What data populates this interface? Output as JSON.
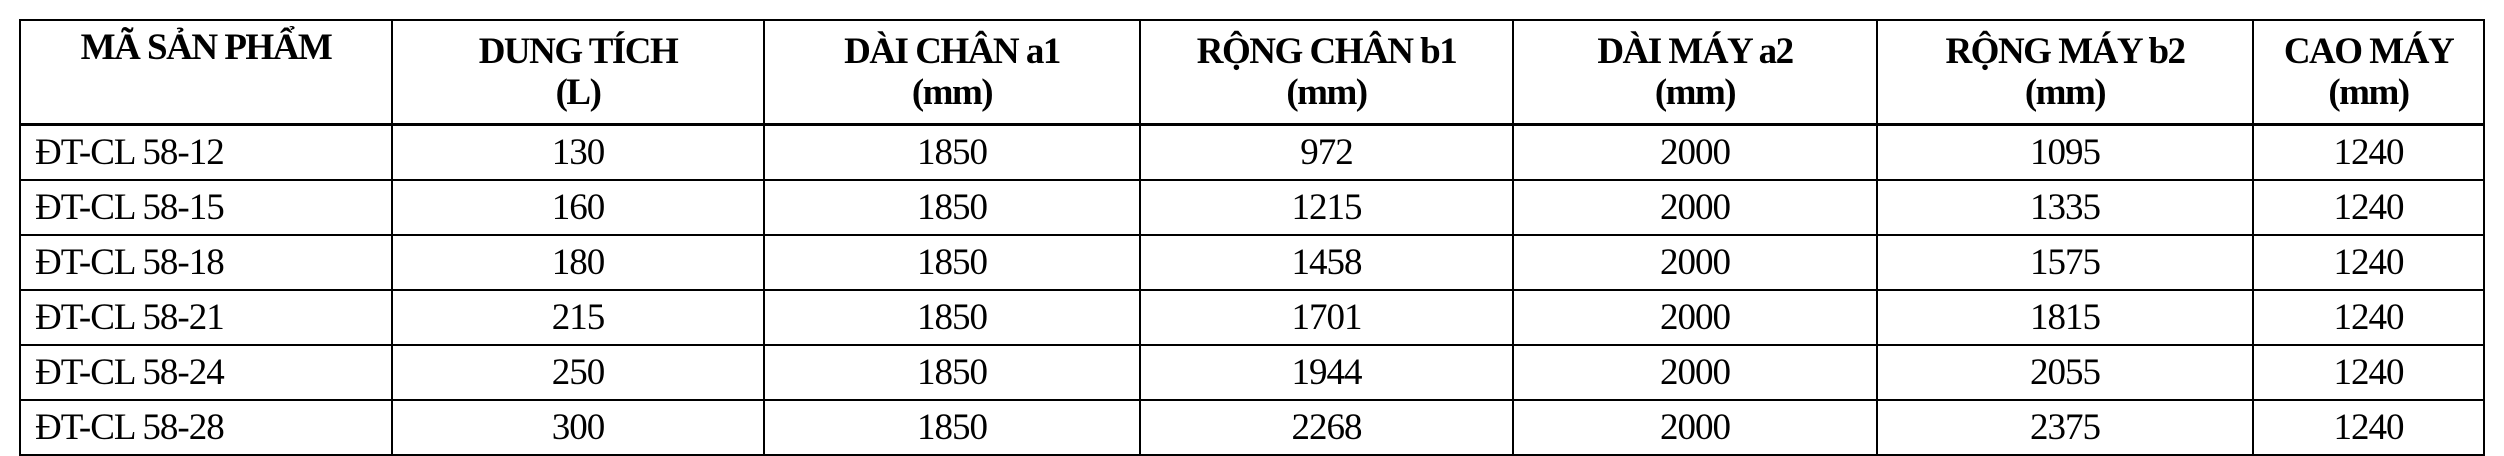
{
  "table": {
    "headers": [
      {
        "line1": "MÃ SẢN PHẨM",
        "line2": ""
      },
      {
        "line1": "DUNG TÍCH",
        "line2": "(L)"
      },
      {
        "line1": "DÀI CHÂN a1",
        "line2": "(mm)"
      },
      {
        "line1": "RỘNG CHÂN b1",
        "line2": "(mm)"
      },
      {
        "line1": "DÀI MÁY a2",
        "line2": "(mm)"
      },
      {
        "line1": "RỘNG MÁY b2",
        "line2": "(mm)"
      },
      {
        "line1": "CAO MÁY",
        "line2": "(mm)"
      }
    ],
    "rows": [
      [
        "ĐT-CL 58-12",
        "130",
        "1850",
        "972",
        "2000",
        "1095",
        "1240"
      ],
      [
        "ĐT-CL 58-15",
        "160",
        "1850",
        "1215",
        "2000",
        "1335",
        "1240"
      ],
      [
        "ĐT-CL 58-18",
        "180",
        "1850",
        "1458",
        "2000",
        "1575",
        "1240"
      ],
      [
        "ĐT-CL 58-21",
        "215",
        "1850",
        "1701",
        "2000",
        "1815",
        "1240"
      ],
      [
        "ĐT-CL 58-24",
        "250",
        "1850",
        "1944",
        "2000",
        "2055",
        "1240"
      ],
      [
        "ĐT-CL 58-28",
        "300",
        "1850",
        "2268",
        "2000",
        "2375",
        "1240"
      ]
    ]
  }
}
